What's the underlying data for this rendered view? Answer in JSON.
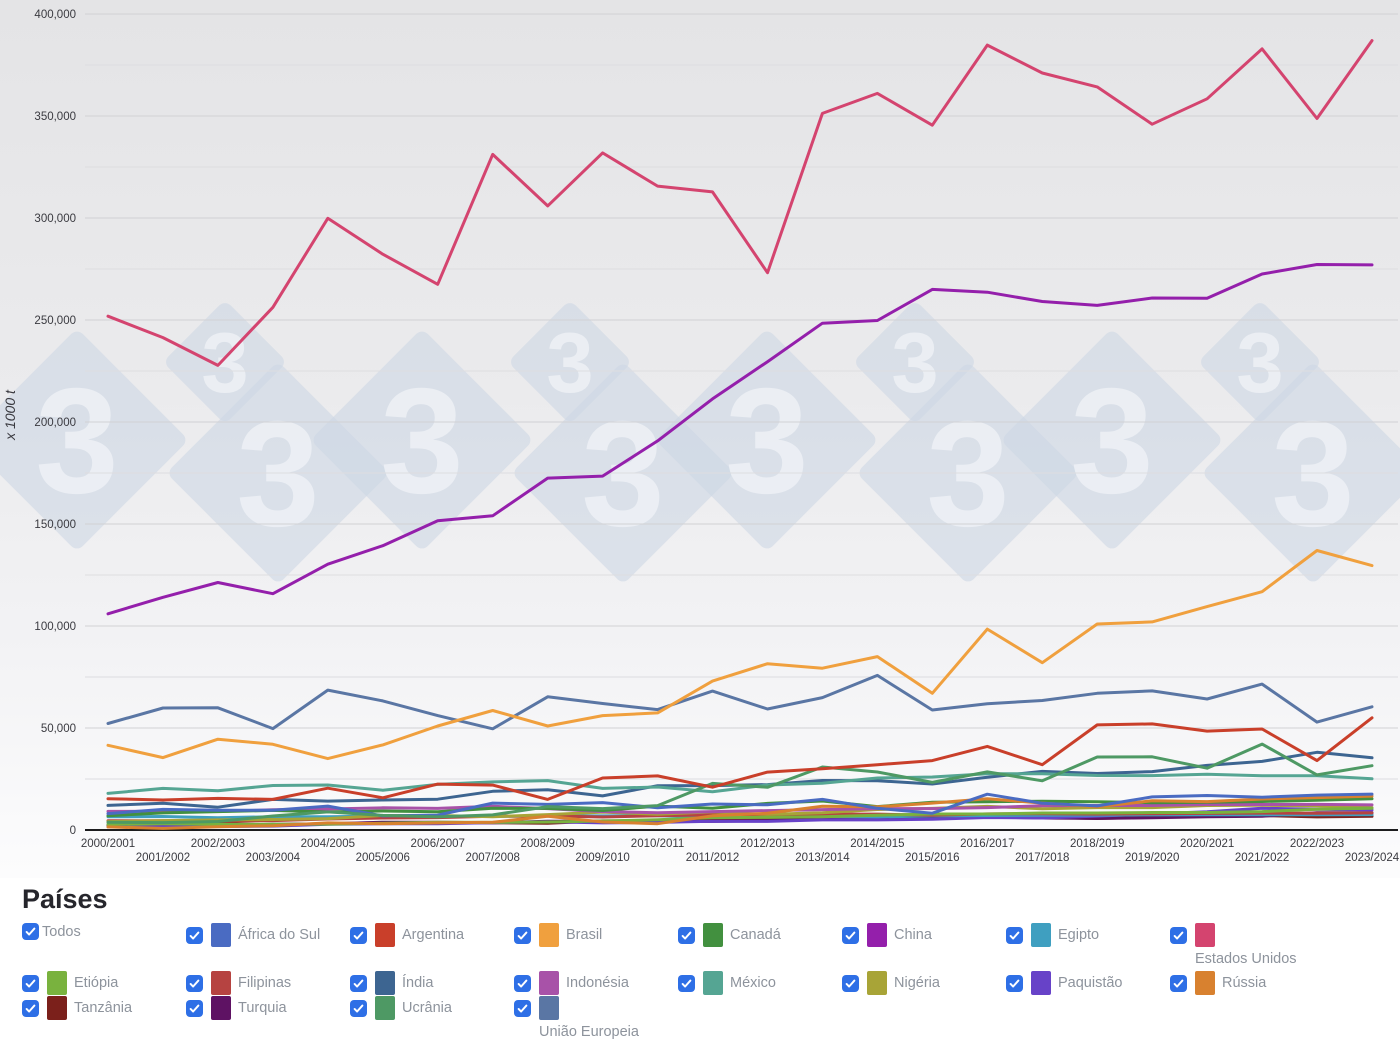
{
  "legend": {
    "heading": "Países",
    "checkbox_color": "#2e6fe6",
    "items": [
      {
        "id": "todos",
        "label": "Todos",
        "color": null,
        "row": 1,
        "wrap": false
      },
      {
        "id": "africa-do-sul",
        "label": "África do Sul",
        "color": "#4a6bc2",
        "row": 1,
        "wrap": false
      },
      {
        "id": "argentina",
        "label": "Argentina",
        "color": "#c93f2a",
        "row": 1,
        "wrap": false
      },
      {
        "id": "brasil",
        "label": "Brasil",
        "color": "#f0a03e",
        "row": 1,
        "wrap": false
      },
      {
        "id": "canada",
        "label": "Canadá",
        "color": "#42903f",
        "row": 1,
        "wrap": false
      },
      {
        "id": "china",
        "label": "China",
        "color": "#941fab",
        "row": 1,
        "wrap": false
      },
      {
        "id": "egipto",
        "label": "Egipto",
        "color": "#3f9fc0",
        "row": 1,
        "wrap": false
      },
      {
        "id": "estados-unidos",
        "label": "Estados Unidos",
        "color": "#d4446f",
        "row": 1,
        "wrap": true
      },
      {
        "id": "etiopia",
        "label": "Etiópia",
        "color": "#79b23e",
        "row": 2,
        "wrap": false
      },
      {
        "id": "filipinas",
        "label": "Filipinas",
        "color": "#b64341",
        "row": 2,
        "wrap": false
      },
      {
        "id": "india",
        "label": "Índia",
        "color": "#3d6591",
        "row": 2,
        "wrap": false
      },
      {
        "id": "indonesia",
        "label": "Indonésia",
        "color": "#a852a8",
        "row": 2,
        "wrap": false
      },
      {
        "id": "mexico",
        "label": "México",
        "color": "#55a593",
        "row": 2,
        "wrap": false
      },
      {
        "id": "nigeria",
        "label": "Nigéria",
        "color": "#a8a437",
        "row": 2,
        "wrap": false
      },
      {
        "id": "paquistao",
        "label": "Paquistão",
        "color": "#6742c8",
        "row": 2,
        "wrap": false
      },
      {
        "id": "russia",
        "label": "Rússia",
        "color": "#d8812f",
        "row": 2,
        "wrap": false
      },
      {
        "id": "tanzania",
        "label": "Tanzânia",
        "color": "#7b201b",
        "row": 3,
        "wrap": false
      },
      {
        "id": "turquia",
        "label": "Turquia",
        "color": "#5e1263",
        "row": 3,
        "wrap": false
      },
      {
        "id": "ucrania",
        "label": "Ucrânia",
        "color": "#4e9964",
        "row": 3,
        "wrap": false
      },
      {
        "id": "uniao-europeia",
        "label": "União Europeia",
        "color": "#5a76a4",
        "row": 3,
        "wrap": true
      }
    ]
  },
  "watermark": {
    "glyph": "3",
    "diamond_color": "#cdd7e5",
    "glyph_color": "#edf0f5",
    "cluster_x": [
      77,
      422,
      767,
      1112
    ]
  },
  "chart_data": {
    "type": "line",
    "title": "",
    "ylabel": "x 1000 t",
    "xlabel": "",
    "ylim": [
      0,
      400000
    ],
    "ytick_major": 50000,
    "ytick_minor": 25000,
    "grid": true,
    "legend_position": "bottom",
    "x": [
      "2000/2001",
      "2001/2002",
      "2002/2003",
      "2003/2004",
      "2004/2005",
      "2005/2006",
      "2006/2007",
      "2007/2008",
      "2008/2009",
      "2009/2010",
      "2010/2011",
      "2011/2012",
      "2012/2013",
      "2013/2014",
      "2014/2015",
      "2015/2016",
      "2016/2017",
      "2017/2018",
      "2018/2019",
      "2019/2020",
      "2020/2021",
      "2021/2022",
      "2022/2023",
      "2023/2024"
    ],
    "series": [
      {
        "id": "tanzania",
        "name": "Tanzânia",
        "color": "#7b201b",
        "values": [
          2579,
          2705,
          3160,
          2614,
          3132,
          3423,
          3659,
          3556,
          3326,
          4475,
          4341,
          5104,
          5356,
          6737,
          6741,
          6149,
          6680,
          6273,
          5652,
          6273,
          6711,
          7039,
          6400,
          6700
        ]
      },
      {
        "id": "turquia",
        "name": "Turquia",
        "color": "#5e1263",
        "values": [
          2300,
          2200,
          2100,
          2800,
          3000,
          3800,
          3800,
          3535,
          4274,
          4250,
          4310,
          4200,
          4600,
          5900,
          5950,
          6400,
          6400,
          5900,
          5700,
          6000,
          6500,
          6750,
          8500,
          8500
        ]
      },
      {
        "id": "paquistao",
        "name": "Paquistão",
        "color": "#6742c8",
        "values": [
          1643,
          1664,
          1737,
          1897,
          2797,
          3110,
          3088,
          3605,
          4036,
          3487,
          3707,
          4338,
          4220,
          4944,
          4937,
          5271,
          6134,
          5902,
          6826,
          7883,
          8940,
          10635,
          10183,
          9800
        ]
      },
      {
        "id": "egipto",
        "name": "Egipto",
        "color": "#3f9fc0",
        "values": [
          6474,
          6621,
          6000,
          6500,
          6530,
          6800,
          6645,
          6645,
          6850,
          6900,
          7000,
          6500,
          6900,
          6600,
          6400,
          6900,
          7100,
          7200,
          7300,
          7400,
          7500,
          7510,
          7510,
          7550
        ]
      },
      {
        "id": "filipinas",
        "name": "Filipinas",
        "color": "#b64341",
        "values": [
          4511,
          4525,
          4319,
          4616,
          5413,
          5884,
          6082,
          6737,
          6928,
          6377,
          6971,
          7407,
          7408,
          7770,
          7771,
          7219,
          7915,
          7980,
          7772,
          7979,
          8119,
          8305,
          8255,
          8400
        ]
      },
      {
        "id": "nigeria",
        "name": "Nigéria",
        "color": "#a8a437",
        "values": [
          4107,
          4620,
          4934,
          5150,
          5567,
          7100,
          7100,
          6500,
          7525,
          8759,
          7677,
          8878,
          7630,
          8423,
          10059,
          10600,
          11548,
          10420,
          11000,
          11000,
          12000,
          12100,
          11800,
          11000
        ]
      },
      {
        "id": "etiopia",
        "name": "Etiópia",
        "color": "#79b23e",
        "values": [
          2768,
          3052,
          2744,
          2806,
          2906,
          3336,
          3776,
          3750,
          3900,
          4400,
          4986,
          6069,
          6158,
          6492,
          7235,
          7847,
          7847,
          8350,
          8350,
          8600,
          8600,
          9000,
          10200,
          10700
        ]
      },
      {
        "id": "indonesia",
        "name": "Indonésia",
        "color": "#a852a8",
        "values": [
          9100,
          9200,
          9100,
          9900,
          10300,
          10900,
          10600,
          11600,
          10500,
          9000,
          8500,
          9000,
          9500,
          10000,
          10500,
          10500,
          11000,
          11900,
          12000,
          12000,
          12500,
          12500,
          12550,
          12300
        ]
      },
      {
        "id": "canada",
        "name": "Canadá",
        "color": "#42903f",
        "values": [
          6954,
          8389,
          8999,
          9587,
          8837,
          9332,
          8990,
          10635,
          10592,
          9561,
          11714,
          10689,
          13060,
          14194,
          11486,
          13559,
          13889,
          14095,
          13885,
          13404,
          13563,
          13984,
          14538,
          15341
        ]
      },
      {
        "id": "russia",
        "name": "Rússia",
        "color": "#d8812f",
        "values": [
          1500,
          800,
          1600,
          2100,
          3500,
          3100,
          3500,
          3800,
          6700,
          3900,
          3100,
          6960,
          8200,
          11600,
          11300,
          13200,
          15300,
          13200,
          11400,
          14300,
          13900,
          15200,
          15900,
          16600
        ]
      },
      {
        "id": "africa-do-sul",
        "name": "África do Sul",
        "color": "#4a6bc2",
        "values": [
          8040,
          10076,
          9675,
          9710,
          11716,
          6935,
          7300,
          13164,
          12567,
          13420,
          10924,
          12759,
          12365,
          14982,
          10629,
          8213,
          17551,
          13104,
          11823,
          16250,
          16900,
          16100,
          17100,
          17600
        ]
      },
      {
        "id": "india",
        "name": "Índia",
        "color": "#3d6591",
        "values": [
          12043,
          13160,
          11152,
          14984,
          14172,
          14710,
          15097,
          18955,
          19730,
          16720,
          21730,
          21760,
          22260,
          24260,
          24170,
          22570,
          25900,
          28750,
          27720,
          28640,
          31650,
          33620,
          38090,
          35400
        ]
      },
      {
        "id": "mexico",
        "name": "México",
        "color": "#55a593",
        "values": [
          17917,
          20400,
          19280,
          21800,
          22050,
          19500,
          22350,
          23600,
          24226,
          20374,
          21058,
          18726,
          22069,
          22880,
          25480,
          25971,
          27575,
          27569,
          26700,
          26660,
          27347,
          26560,
          26550,
          25100
        ]
      },
      {
        "id": "ucrania",
        "name": "Ucrânia",
        "color": "#4e9964",
        "values": [
          3848,
          3641,
          4180,
          6875,
          8867,
          7167,
          6426,
          7421,
          11447,
          10486,
          11953,
          22838,
          20922,
          30900,
          28450,
          23333,
          28500,
          24115,
          35805,
          35887,
          30290,
          42110,
          27000,
          31500
        ]
      },
      {
        "id": "argentina",
        "name": "Argentina",
        "color": "#c93f2a",
        "values": [
          15360,
          14710,
          15500,
          15000,
          20483,
          15800,
          22500,
          22017,
          15000,
          25500,
          26500,
          21000,
          28400,
          30000,
          32000,
          34000,
          41000,
          32000,
          51500,
          52000,
          48500,
          49500,
          34000,
          55000
        ]
      },
      {
        "id": "uniao-europeia",
        "name": "União Europeia",
        "color": "#5a76a4",
        "values": [
          52200,
          59800,
          59900,
          49700,
          68600,
          63300,
          56100,
          49600,
          65300,
          62000,
          59000,
          68100,
          59300,
          64900,
          75800,
          58800,
          61900,
          63500,
          67000,
          68200,
          64200,
          71500,
          52900,
          60400
        ]
      },
      {
        "id": "brasil",
        "name": "Brasil",
        "color": "#f0a03e",
        "values": [
          41535,
          35500,
          44500,
          42000,
          35000,
          41700,
          51000,
          58600,
          51000,
          56100,
          57400,
          73000,
          81500,
          79300,
          85000,
          67000,
          98500,
          82000,
          101000,
          102000,
          109500,
          116800,
          137000,
          129600
        ]
      },
      {
        "id": "china",
        "name": "China",
        "color": "#941fab",
        "values": [
          106000,
          114088,
          121300,
          115830,
          130290,
          139365,
          151600,
          154000,
          172500,
          173500,
          190750,
          211320,
          229560,
          248450,
          249760,
          264990,
          263610,
          259070,
          257170,
          260780,
          260670,
          272550,
          277200,
          277000
        ]
      },
      {
        "id": "estados-unidos",
        "name": "Estados Unidos",
        "color": "#d4446f",
        "values": [
          251854,
          241377,
          227767,
          256229,
          299876,
          282263,
          267503,
          331177,
          305911,
          331921,
          315618,
          312789,
          273192,
          351272,
          361091,
          345506,
          384778,
          371096,
          364262,
          345962,
          358447,
          382893,
          348751,
          386970
        ]
      }
    ]
  }
}
